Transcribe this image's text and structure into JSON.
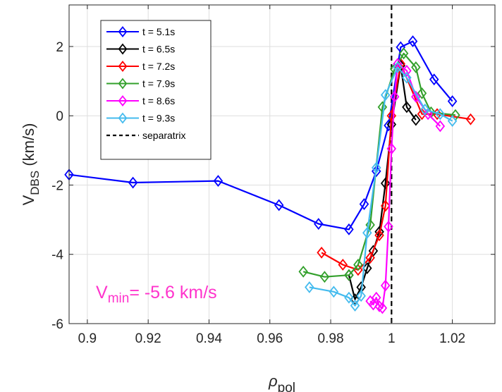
{
  "chart_data": {
    "type": "line",
    "title": "",
    "xlabel": "ρ",
    "xlabel_sub": "pol",
    "ylabel": "V",
    "ylabel_sub": "DBS",
    "ylabel_unit": " (km/s)",
    "xlim": [
      0.894,
      1.034
    ],
    "ylim": [
      -6,
      3.2
    ],
    "xticks": [
      0.9,
      0.92,
      0.94,
      0.96,
      0.98,
      1,
      1.02
    ],
    "xtick_labels": [
      "0.9",
      "0.92",
      "0.94",
      "0.96",
      "0.98",
      "1",
      "1.02"
    ],
    "yticks": [
      -6,
      -4,
      -2,
      0,
      2
    ],
    "ytick_labels": [
      "-6",
      "-4",
      "-2",
      "0",
      "2"
    ],
    "grid": true,
    "legend_position": "top-left",
    "marker": "diamond",
    "series": [
      {
        "name": "t = 5.1s",
        "color": "#0000ff",
        "x": [
          0.894,
          0.915,
          0.943,
          0.963,
          0.976,
          0.986,
          0.991,
          0.995,
          0.999,
          1.003,
          1.007,
          1.014,
          1.02
        ],
        "y": [
          -1.7,
          -1.93,
          -1.88,
          -2.58,
          -3.12,
          -3.28,
          -2.55,
          -1.6,
          -0.28,
          1.98,
          2.15,
          1.05,
          0.42
        ]
      },
      {
        "name": "t = 6.5s",
        "color": "#000000",
        "x": [
          0.986,
          0.988,
          0.99,
          0.992,
          0.994,
          0.996,
          0.998,
          1.0,
          1.003,
          1.005,
          1.008
        ],
        "y": [
          -4.6,
          -5.3,
          -4.95,
          -4.4,
          -3.9,
          -3.35,
          -1.95,
          -0.25,
          1.45,
          0.25,
          -0.12
        ]
      },
      {
        "name": "t = 7.2s",
        "color": "#ff0000",
        "x": [
          0.977,
          0.984,
          0.989,
          0.993,
          0.996,
          0.998,
          1.0,
          1.003,
          1.01,
          1.015,
          1.026
        ],
        "y": [
          -3.95,
          -4.3,
          -4.45,
          -4.1,
          -3.45,
          -2.6,
          0.0,
          1.5,
          0.05,
          0.05,
          -0.1
        ]
      },
      {
        "name": "t = 7.9s",
        "color": "#33a02c",
        "x": [
          0.971,
          0.978,
          0.986,
          0.989,
          0.993,
          0.997,
          1.001,
          1.004,
          1.008,
          1.01,
          1.013,
          1.021
        ],
        "y": [
          -4.5,
          -4.65,
          -4.6,
          -4.3,
          -3.15,
          0.25,
          1.35,
          1.8,
          1.4,
          0.65,
          0.1,
          0.02
        ]
      },
      {
        "name": "t = 8.6s",
        "color": "#ff00ff",
        "x": [
          0.993,
          0.994,
          0.995,
          0.996,
          0.997,
          0.998,
          0.999,
          1.0,
          1.001,
          1.002,
          1.005,
          1.008,
          1.012,
          1.016
        ],
        "y": [
          -5.35,
          -5.45,
          -5.25,
          -5.5,
          -5.55,
          -4.9,
          -3.2,
          -0.95,
          0.55,
          1.5,
          1.3,
          0.55,
          0.05,
          -0.3
        ]
      },
      {
        "name": "t = 9.3s",
        "color": "#44bbee",
        "x": [
          0.973,
          0.981,
          0.986,
          0.988,
          0.99,
          0.992,
          0.995,
          0.998,
          1.002,
          1.005,
          1.011,
          1.016,
          1.02
        ],
        "y": [
          -4.95,
          -5.08,
          -5.25,
          -5.48,
          -5.2,
          -3.38,
          -1.5,
          0.6,
          1.4,
          1.1,
          0.18,
          0.05,
          -0.15
        ]
      }
    ],
    "reference_lines": [
      {
        "name": "separatrix",
        "x": 1.0,
        "style": "dashed",
        "color": "#000000"
      }
    ],
    "annotations": [
      {
        "text_main": "V",
        "text_sub": "min",
        "text_rest": "= -5.6 km/s",
        "color": "#ff33cc"
      }
    ]
  }
}
